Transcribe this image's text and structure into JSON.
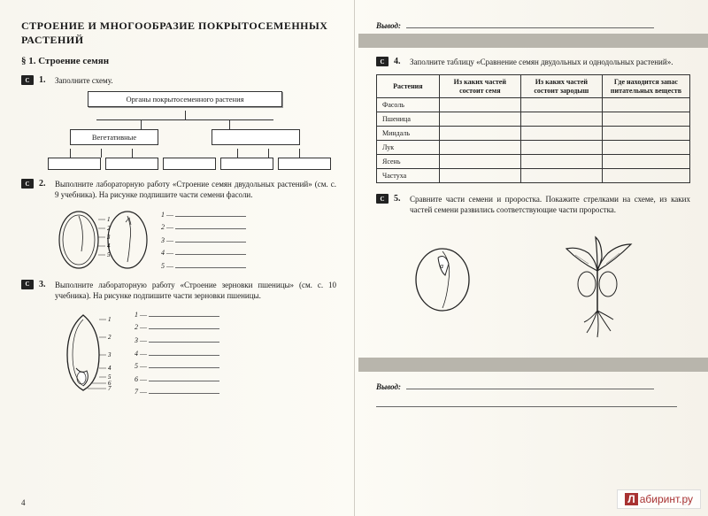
{
  "left": {
    "chapter_title": "СТРОЕНИЕ И МНОГООБРАЗИЕ ПОКРЫТОСЕМЕННЫХ РАСТЕНИЙ",
    "section": "§ 1. Строение семян",
    "t1": {
      "icon": "С",
      "num": "1.",
      "text": "Заполните схему."
    },
    "scheme_top": "Органы покрытосеменного растения",
    "scheme_mid": "Вегетативные",
    "t2": {
      "icon": "С",
      "num": "2.",
      "text": "Выполните лабораторную работу «Строение семян двудольных растений» (см. с. 9 учебника). На рисунке подпишите части семени фасоли."
    },
    "t3": {
      "icon": "С",
      "num": "3.",
      "text": "Выполните лабораторную работу «Строение зерновки пшеницы» (см. с. 10 учебника). На рисунке подпишите части зерновки пшеницы."
    },
    "page_num": "4"
  },
  "right": {
    "conclusion": "Вывод:",
    "t4": {
      "icon": "С",
      "num": "4.",
      "text": "Заполните таблицу «Сравнение семян двудольных и однодольных растений»."
    },
    "table": {
      "headers": [
        "Растения",
        "Из каких частей состоит семя",
        "Из каких частей состоит зародыш",
        "Где находится запас питательных веществ"
      ],
      "rows": [
        "Фасоль",
        "Пшеница",
        "Миндаль",
        "Лук",
        "Ясень",
        "Частуха"
      ],
      "col_widths": [
        "20%",
        "26%",
        "26%",
        "28%"
      ]
    },
    "t5": {
      "icon": "С",
      "num": "5.",
      "text": "Сравните части семени и проростка. Покажите стрелками на схеме, из каких частей семени развились соответствующие части проростка."
    },
    "page_num": "5"
  },
  "watermark": "абиринт.ру",
  "colors": {
    "page_bg": "#fcfbf5",
    "text": "#1a1a1a",
    "gray_band": "#b8b5ac",
    "border": "#333333"
  }
}
